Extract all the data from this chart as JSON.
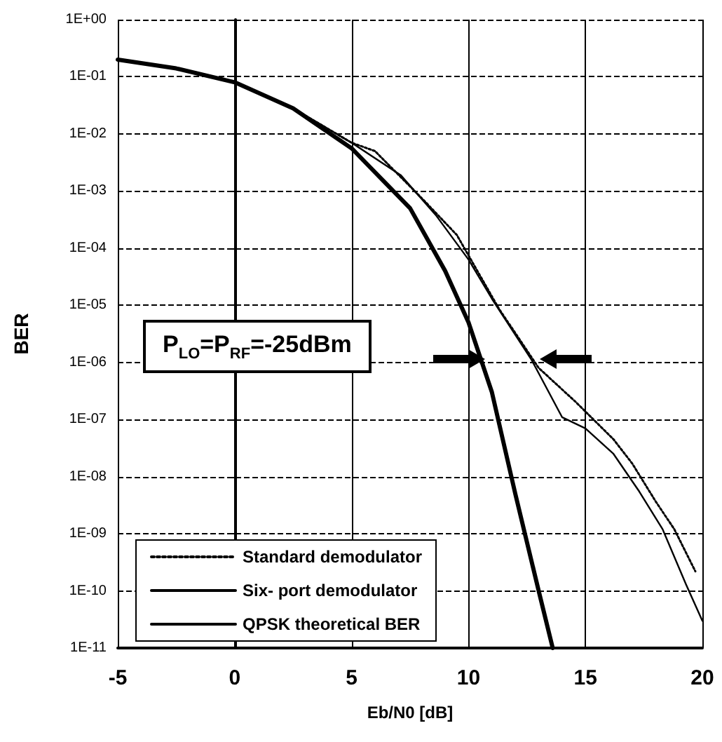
{
  "chart_data": {
    "type": "line",
    "xlabel": "Eb/N0 [dB]",
    "ylabel": "BER",
    "annotations": [
      "P$_{LO}$=P$_{RF}$=-25dBm"
    ],
    "xlim": [
      -5,
      20
    ],
    "xticks": [
      -5,
      0,
      5,
      10,
      15,
      20
    ],
    "ylim": [
      1e-11,
      1
    ],
    "log": "y",
    "yticks": [
      {
        "value": 1,
        "label": "1E+00"
      },
      {
        "value": 0.1,
        "label": "1E-01"
      },
      {
        "value": 0.01,
        "label": "1E-02"
      },
      {
        "value": 0.001,
        "label": "1E-03"
      },
      {
        "value": 0.0001,
        "label": "1E-04"
      },
      {
        "value": 1e-05,
        "label": "1E-05"
      },
      {
        "value": 1e-06,
        "label": "1E-06"
      },
      {
        "value": 1e-07,
        "label": "1E-07"
      },
      {
        "value": 1e-08,
        "label": "1E-08"
      },
      {
        "value": 1e-09,
        "label": "1E-09"
      },
      {
        "value": 1e-10,
        "label": "1E-10"
      },
      {
        "value": 1e-11,
        "label": "1E-11"
      }
    ],
    "grid": true,
    "legend": "bottom left",
    "marker": "none",
    "series": [
      {
        "name": "Standard demodulator",
        "color": "#000000",
        "line_style": "dotted",
        "x": [
          -5,
          -2.5,
          0,
          2.5,
          5,
          6,
          8.1,
          9.5,
          11.3,
          13,
          14.6,
          16.2,
          17,
          18,
          18.8,
          19.7
        ],
        "values": [
          0.2,
          0.14,
          0.08,
          0.028,
          0.007,
          0.005,
          0.00068,
          0.00017,
          8.7e-06,
          8e-07,
          2e-07,
          4.5e-08,
          1.7e-08,
          3.7e-09,
          1.2e-09,
          2.2e-10
        ]
      },
      {
        "name": "Six- port demodulator",
        "color": "#000000",
        "line_style": "solid",
        "x": [
          -5,
          -2.5,
          0,
          2.5,
          5,
          7.5,
          9,
          10,
          11,
          12,
          13,
          13.6
        ],
        "values": [
          0.2,
          0.14,
          0.08,
          0.028,
          0.0056,
          0.0005,
          4e-05,
          5e-06,
          3e-07,
          5e-09,
          1e-10,
          1e-11
        ]
      },
      {
        "name": "QPSK theoretical BER",
        "color": "#000000",
        "line_style": "solid",
        "x": [
          -5,
          -2.5,
          0,
          2.5,
          5,
          7.1,
          8.6,
          10,
          11,
          12.7,
          14,
          15,
          16.2,
          17.3,
          18.3,
          19.3,
          20
        ],
        "values": [
          0.2,
          0.14,
          0.08,
          0.028,
          0.007,
          0.0019,
          0.00038,
          6.3e-05,
          1.3e-05,
          1.1e-06,
          1.1e-07,
          7e-08,
          2.5e-08,
          5.5e-09,
          1.2e-09,
          1.3e-10,
          3e-11
        ]
      }
    ]
  }
}
